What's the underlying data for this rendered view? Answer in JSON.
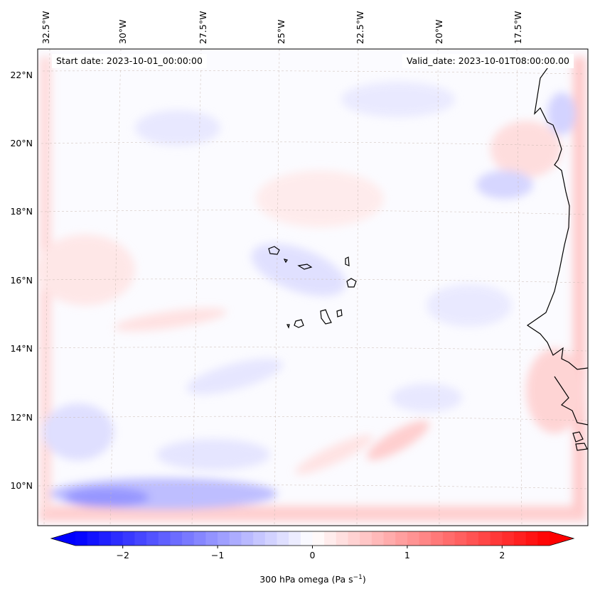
{
  "header": {
    "start_date": "Start date: 2023-10-01_00:00:00",
    "valid_date": "Valid_date: 2023-10-01T08:00:00.00"
  },
  "map": {
    "longitude_labels": [
      "32.5°W",
      "30°W",
      "27.5°W",
      "25°W",
      "22.5°W",
      "20°W",
      "17.5°W"
    ],
    "latitude_labels": [
      "22°N",
      "20°N",
      "18°N",
      "16°N",
      "14°N",
      "12°N",
      "10°N"
    ],
    "colors": {
      "negative": "#0000ff",
      "neutral": "#ffffff",
      "positive": "#ff0000",
      "coast": "#000000"
    }
  },
  "colorbar": {
    "ticks": [
      "−2",
      "−1",
      "0",
      "1",
      "2"
    ],
    "tick_values": [
      -2,
      -1,
      0,
      1,
      2
    ],
    "range": [
      -2.5,
      2.5
    ],
    "label_main": "300 hPa omega (Pa s",
    "label_sup": "−1",
    "label_end": ")"
  }
}
